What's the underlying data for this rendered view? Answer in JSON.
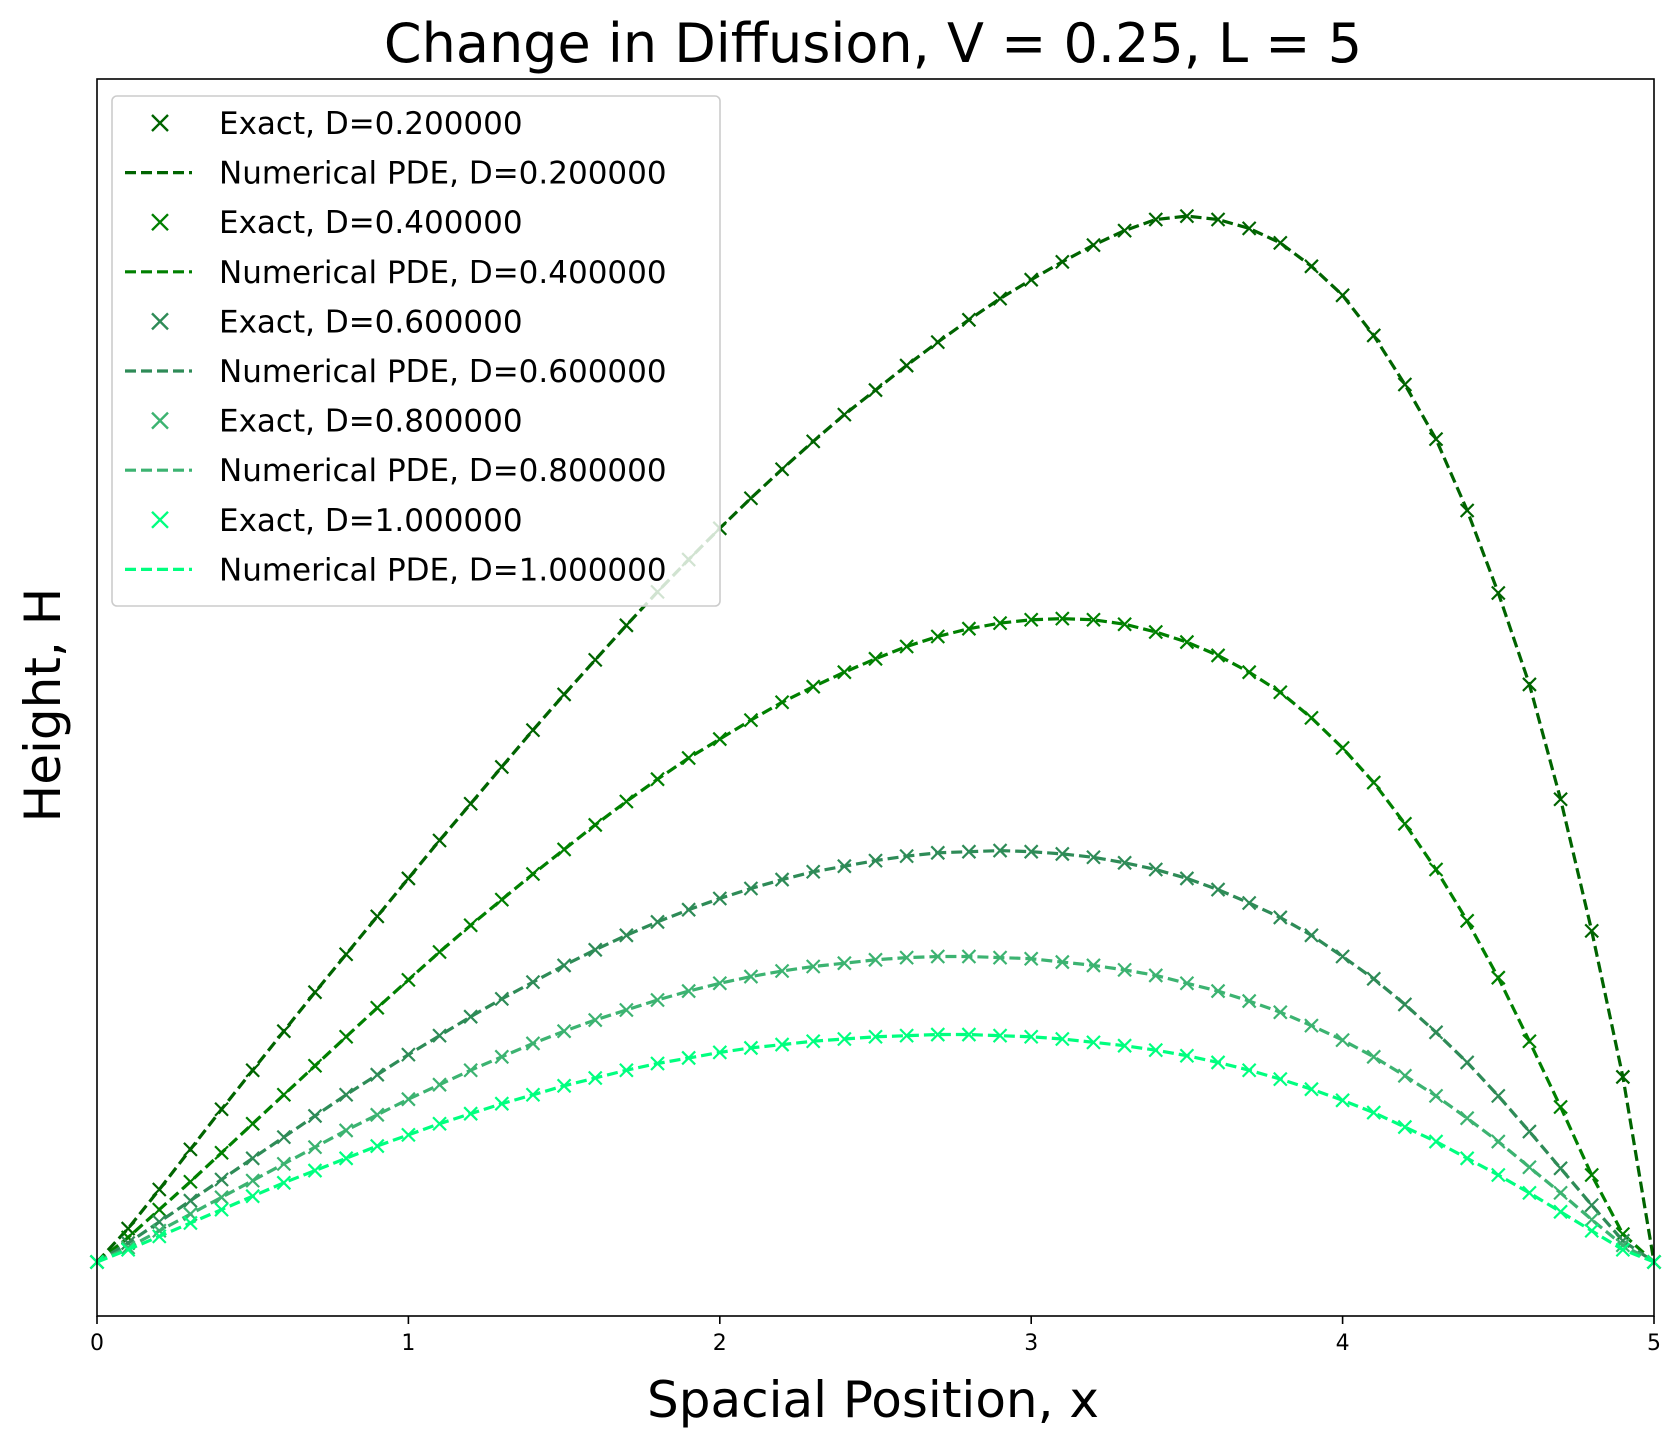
{
  "chart_data": {
    "type": "line",
    "title": "Change in Diffusion, V = 0.25, L = 5",
    "xlabel": "Spacial Position, x",
    "ylabel": "Height, H",
    "xlim": [
      0,
      5
    ],
    "ylim": [
      0,
      1
    ],
    "xticks": [
      "0",
      "1",
      "2",
      "3",
      "4",
      "5"
    ],
    "yticks": [],
    "grid": false,
    "legend_position": "top-left",
    "series": [
      {
        "D": 0.2,
        "color": "#006400",
        "exact_name": "Exact, D=0.200000",
        "numerical_name": "Numerical PDE, D=0.200000",
        "x": [
          0,
          0.1,
          0.2,
          0.3,
          0.4,
          0.5,
          0.6,
          0.7,
          0.8,
          0.9,
          1.0,
          1.1,
          1.2,
          1.3,
          1.4,
          1.5,
          1.6,
          1.7,
          1.8,
          1.9,
          2.0,
          2.1,
          2.2,
          2.3,
          2.4,
          2.5,
          2.6,
          2.7,
          2.8,
          2.9,
          3.0,
          3.1,
          3.2,
          3.3,
          3.4,
          3.5,
          3.6,
          3.7,
          3.8,
          3.9,
          4.0,
          4.1,
          4.2,
          4.3,
          4.4,
          4.5,
          4.6,
          4.7,
          4.8,
          4.9,
          5.0
        ],
        "y": [
          0,
          0.03,
          0.065,
          0.101,
          0.137,
          0.172,
          0.207,
          0.242,
          0.276,
          0.31,
          0.344,
          0.378,
          0.411,
          0.444,
          0.477,
          0.509,
          0.54,
          0.571,
          0.601,
          0.63,
          0.658,
          0.685,
          0.711,
          0.736,
          0.76,
          0.782,
          0.804,
          0.825,
          0.845,
          0.864,
          0.881,
          0.897,
          0.912,
          0.925,
          0.935,
          0.938,
          0.935,
          0.927,
          0.914,
          0.893,
          0.867,
          0.831,
          0.787,
          0.738,
          0.674,
          0.6,
          0.518,
          0.415,
          0.297,
          0.166,
          0
        ]
      },
      {
        "D": 0.4,
        "color": "#008000",
        "exact_name": "Exact, D=0.400000",
        "numerical_name": "Numerical PDE, D=0.400000",
        "x": [
          0,
          0.1,
          0.2,
          0.3,
          0.4,
          0.5,
          0.6,
          0.7,
          0.8,
          0.9,
          1.0,
          1.1,
          1.2,
          1.3,
          1.4,
          1.5,
          1.6,
          1.7,
          1.8,
          1.9,
          2.0,
          2.1,
          2.2,
          2.3,
          2.4,
          2.5,
          2.6,
          2.7,
          2.8,
          2.9,
          3.0,
          3.1,
          3.2,
          3.3,
          3.4,
          3.5,
          3.6,
          3.7,
          3.8,
          3.9,
          4.0,
          4.1,
          4.2,
          4.3,
          4.4,
          4.5,
          4.6,
          4.7,
          4.8,
          4.9,
          5.0
        ],
        "y": [
          0,
          0.022,
          0.047,
          0.072,
          0.098,
          0.124,
          0.15,
          0.176,
          0.202,
          0.228,
          0.253,
          0.278,
          0.302,
          0.325,
          0.348,
          0.37,
          0.392,
          0.413,
          0.433,
          0.452,
          0.469,
          0.486,
          0.502,
          0.516,
          0.529,
          0.541,
          0.552,
          0.561,
          0.568,
          0.573,
          0.576,
          0.577,
          0.576,
          0.572,
          0.565,
          0.556,
          0.544,
          0.529,
          0.511,
          0.488,
          0.461,
          0.43,
          0.393,
          0.352,
          0.306,
          0.255,
          0.198,
          0.139,
          0.078,
          0.025,
          0
        ]
      },
      {
        "D": 0.6,
        "color": "#2e8b57",
        "exact_name": "Exact, D=0.600000",
        "numerical_name": "Numerical PDE, D=0.600000",
        "x": [
          0,
          0.1,
          0.2,
          0.3,
          0.4,
          0.5,
          0.6,
          0.7,
          0.8,
          0.9,
          1.0,
          1.1,
          1.2,
          1.3,
          1.4,
          1.5,
          1.6,
          1.7,
          1.8,
          1.9,
          2.0,
          2.1,
          2.2,
          2.3,
          2.4,
          2.5,
          2.6,
          2.7,
          2.8,
          2.9,
          3.0,
          3.1,
          3.2,
          3.3,
          3.4,
          3.5,
          3.6,
          3.7,
          3.8,
          3.9,
          4.0,
          4.1,
          4.2,
          4.3,
          4.4,
          4.5,
          4.6,
          4.7,
          4.8,
          4.9,
          5.0
        ],
        "y": [
          0,
          0.017,
          0.036,
          0.055,
          0.074,
          0.093,
          0.112,
          0.131,
          0.15,
          0.168,
          0.186,
          0.203,
          0.22,
          0.236,
          0.251,
          0.266,
          0.28,
          0.293,
          0.305,
          0.316,
          0.326,
          0.335,
          0.343,
          0.35,
          0.355,
          0.36,
          0.364,
          0.367,
          0.368,
          0.369,
          0.368,
          0.366,
          0.363,
          0.358,
          0.352,
          0.344,
          0.334,
          0.322,
          0.309,
          0.293,
          0.274,
          0.254,
          0.231,
          0.206,
          0.179,
          0.149,
          0.117,
          0.084,
          0.051,
          0.019,
          0
        ]
      },
      {
        "D": 0.8,
        "color": "#3cb371",
        "exact_name": "Exact, D=0.800000",
        "numerical_name": "Numerical PDE, D=0.800000",
        "x": [
          0,
          0.1,
          0.2,
          0.3,
          0.4,
          0.5,
          0.6,
          0.7,
          0.8,
          0.9,
          1.0,
          1.1,
          1.2,
          1.3,
          1.4,
          1.5,
          1.6,
          1.7,
          1.8,
          1.9,
          2.0,
          2.1,
          2.2,
          2.3,
          2.4,
          2.5,
          2.6,
          2.7,
          2.8,
          2.9,
          3.0,
          3.1,
          3.2,
          3.3,
          3.4,
          3.5,
          3.6,
          3.7,
          3.8,
          3.9,
          4.0,
          4.1,
          4.2,
          4.3,
          4.4,
          4.5,
          4.6,
          4.7,
          4.8,
          4.9,
          5.0
        ],
        "y": [
          0,
          0.013,
          0.028,
          0.043,
          0.058,
          0.073,
          0.088,
          0.103,
          0.118,
          0.132,
          0.146,
          0.159,
          0.172,
          0.184,
          0.196,
          0.207,
          0.217,
          0.226,
          0.235,
          0.243,
          0.25,
          0.256,
          0.261,
          0.265,
          0.268,
          0.271,
          0.273,
          0.274,
          0.274,
          0.273,
          0.272,
          0.269,
          0.266,
          0.262,
          0.257,
          0.25,
          0.243,
          0.234,
          0.224,
          0.212,
          0.199,
          0.184,
          0.167,
          0.149,
          0.129,
          0.108,
          0.085,
          0.062,
          0.038,
          0.015,
          0
        ]
      },
      {
        "D": 1.0,
        "color": "#00ff7f",
        "exact_name": "Exact, D=1.000000",
        "numerical_name": "Numerical PDE, D=1.000000",
        "x": [
          0,
          0.1,
          0.2,
          0.3,
          0.4,
          0.5,
          0.6,
          0.7,
          0.8,
          0.9,
          1.0,
          1.1,
          1.2,
          1.3,
          1.4,
          1.5,
          1.6,
          1.7,
          1.8,
          1.9,
          2.0,
          2.1,
          2.2,
          2.3,
          2.4,
          2.5,
          2.6,
          2.7,
          2.8,
          2.9,
          3.0,
          3.1,
          3.2,
          3.3,
          3.4,
          3.5,
          3.6,
          3.7,
          3.8,
          3.9,
          4.0,
          4.1,
          4.2,
          4.3,
          4.4,
          4.5,
          4.6,
          4.7,
          4.8,
          4.9,
          5.0
        ],
        "y": [
          0,
          0.011,
          0.023,
          0.035,
          0.047,
          0.059,
          0.071,
          0.082,
          0.093,
          0.104,
          0.114,
          0.124,
          0.133,
          0.142,
          0.15,
          0.158,
          0.165,
          0.172,
          0.178,
          0.183,
          0.188,
          0.192,
          0.195,
          0.198,
          0.2,
          0.202,
          0.203,
          0.204,
          0.204,
          0.203,
          0.202,
          0.2,
          0.197,
          0.194,
          0.19,
          0.185,
          0.179,
          0.172,
          0.164,
          0.155,
          0.145,
          0.134,
          0.121,
          0.108,
          0.093,
          0.078,
          0.062,
          0.045,
          0.028,
          0.011,
          0
        ]
      }
    ]
  }
}
